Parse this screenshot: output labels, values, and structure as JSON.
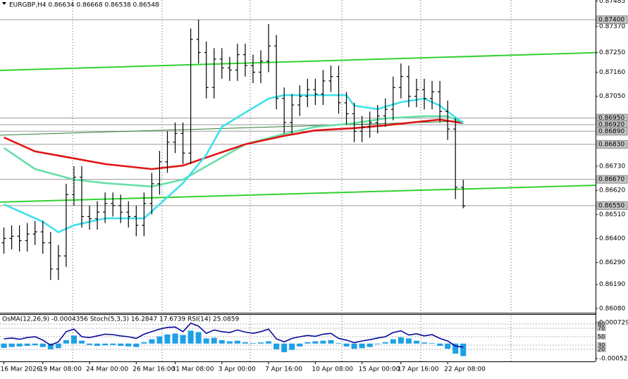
{
  "chart_data": {
    "type": "ohlc",
    "title": "EURGBP,H4  0.86634 0.86668 0.86538 0.86548",
    "categories": [
      "16 Mar 2026",
      null,
      null,
      null,
      null,
      "19 Mar 08:00",
      null,
      null,
      null,
      null,
      null,
      "24 Mar 00:00",
      null,
      null,
      null,
      null,
      null,
      "26 Mar 16:00",
      null,
      null,
      null,
      null,
      "31 Mar 08:00",
      null,
      null,
      null,
      null,
      null,
      "3 Apr 00:00",
      null,
      null,
      null,
      null,
      null,
      "7 Apr 16:00",
      null,
      null,
      null,
      null,
      null,
      "10 Apr 08:00",
      null,
      null,
      null,
      null,
      null,
      "15 Apr 00:00",
      null,
      null,
      null,
      null,
      "17 Apr 16:00",
      null,
      null,
      null,
      null,
      null,
      "22 Apr 08:00",
      null,
      null
    ],
    "open": [
      0.8638,
      0.864,
      0.8641,
      0.8639,
      0.8642,
      0.8643,
      0.8638,
      0.8626,
      0.8632,
      0.866,
      0.8668,
      0.865,
      0.8649,
      0.8652,
      0.8656,
      0.8655,
      0.8652,
      0.865,
      0.8646,
      0.8656,
      0.8665,
      0.8675,
      0.8684,
      0.8688,
      0.8679,
      0.8731,
      0.8725,
      0.8709,
      0.8722,
      0.8718,
      0.8717,
      0.8724,
      0.8719,
      0.8716,
      0.8721,
      0.8728,
      0.8704,
      0.8693,
      0.8701,
      0.8705,
      0.8708,
      0.8706,
      0.8712,
      0.8714,
      0.8702,
      0.8697,
      0.8689,
      0.8691,
      0.8693,
      0.8696,
      0.8699,
      0.8709,
      0.8714,
      0.8705,
      0.8708,
      0.8704,
      0.8707,
      0.8698,
      0.869,
      0.86634
    ],
    "high": [
      0.8645,
      0.8646,
      0.8646,
      0.8647,
      0.8648,
      0.8648,
      0.8643,
      0.8637,
      0.8665,
      0.8673,
      0.8673,
      0.8655,
      0.8657,
      0.8661,
      0.8661,
      0.866,
      0.8657,
      0.8655,
      0.8661,
      0.867,
      0.868,
      0.8689,
      0.8693,
      0.8693,
      0.8736,
      0.874,
      0.873,
      0.8727,
      0.8727,
      0.8723,
      0.8729,
      0.8729,
      0.8724,
      0.8726,
      0.8738,
      0.8733,
      0.8709,
      0.8706,
      0.871,
      0.8713,
      0.8713,
      0.8717,
      0.8719,
      0.8719,
      0.8707,
      0.8702,
      0.8696,
      0.8698,
      0.8701,
      0.8704,
      0.8714,
      0.872,
      0.8719,
      0.8713,
      0.8713,
      0.8712,
      0.8712,
      0.8703,
      0.8695,
      0.86668
    ],
    "low": [
      0.8633,
      0.8635,
      0.8634,
      0.8634,
      0.8637,
      0.8633,
      0.8621,
      0.8621,
      0.8627,
      0.8655,
      0.8645,
      0.8644,
      0.8644,
      0.8647,
      0.865,
      0.8647,
      0.8645,
      0.8641,
      0.8641,
      0.8651,
      0.866,
      0.867,
      0.8679,
      0.8674,
      0.8674,
      0.872,
      0.8704,
      0.8704,
      0.8713,
      0.8712,
      0.8712,
      0.8714,
      0.8711,
      0.8711,
      0.8716,
      0.8699,
      0.8688,
      0.8688,
      0.8696,
      0.87,
      0.8701,
      0.8701,
      0.8707,
      0.8697,
      0.8692,
      0.8684,
      0.8684,
      0.8686,
      0.8688,
      0.8691,
      0.8694,
      0.8704,
      0.87,
      0.87,
      0.8699,
      0.8699,
      0.8693,
      0.8685,
      0.8658,
      0.86538
    ],
    "close": [
      0.864,
      0.8641,
      0.8639,
      0.8642,
      0.8643,
      0.8638,
      0.8626,
      0.8632,
      0.866,
      0.8668,
      0.865,
      0.8649,
      0.8652,
      0.8656,
      0.8655,
      0.8652,
      0.865,
      0.8646,
      0.8656,
      0.8665,
      0.8675,
      0.8684,
      0.8688,
      0.8679,
      0.8731,
      0.8725,
      0.8709,
      0.8722,
      0.8718,
      0.8717,
      0.8724,
      0.8719,
      0.8716,
      0.8721,
      0.8728,
      0.8704,
      0.8693,
      0.8701,
      0.8705,
      0.8708,
      0.8706,
      0.8712,
      0.8714,
      0.8702,
      0.8697,
      0.8689,
      0.8691,
      0.8693,
      0.8696,
      0.8699,
      0.8709,
      0.8714,
      0.8705,
      0.8708,
      0.8704,
      0.8707,
      0.8698,
      0.869,
      0.86634,
      0.86548
    ],
    "color": "#000000",
    "xlim": [
      -0.5,
      76
    ],
    "ylim": [
      0.8606,
      0.8749
    ],
    "yticks": [
      {
        "value": 0.87485,
        "label": "0.87485"
      },
      {
        "value": 0.8737,
        "label": "0.87370"
      },
      {
        "value": 0.8725,
        "label": "0.87250"
      },
      {
        "value": 0.8716,
        "label": "0.87160"
      },
      {
        "value": 0.8705,
        "label": "0.87050"
      },
      {
        "value": 0.8673,
        "label": "0.86730"
      },
      {
        "value": 0.8662,
        "label": "0.86620"
      },
      {
        "value": 0.8651,
        "label": "0.86510"
      },
      {
        "value": 0.864,
        "label": "0.86400"
      },
      {
        "value": 0.8629,
        "label": "0.86290"
      },
      {
        "value": 0.8619,
        "label": "0.86190"
      },
      {
        "value": 0.8608,
        "label": "0.86080"
      }
    ],
    "levels": [
      {
        "value": 0.874,
        "label": "0.87400"
      },
      {
        "value": 0.8695,
        "label": "0.86950"
      },
      {
        "value": 0.8692,
        "label": "0.86920"
      },
      {
        "value": 0.8689,
        "label": "0.86890"
      },
      {
        "value": 0.8683,
        "label": "0.86830"
      },
      {
        "value": 0.8667,
        "label": "0.86670"
      },
      {
        "value": 0.8655,
        "label": "0.86550"
      }
    ],
    "series": [
      {
        "color": "#32d232",
        "x": [
          -0.5,
          76
        ],
        "values": [
          0.87168,
          0.87249
        ]
      },
      {
        "color": "#32d232",
        "x": [
          -0.5,
          76
        ],
        "values": [
          0.86566,
          0.86643
        ]
      },
      {
        "color": "#2e7d32",
        "x": [
          -0.5,
          59
        ],
        "values": [
          0.86872,
          0.86936
        ]
      },
      {
        "color": "#66e0a8",
        "x": [
          0,
          4,
          9,
          13,
          19,
          23,
          27,
          31,
          36,
          40,
          45,
          49,
          54,
          57,
          59
        ],
        "values": [
          0.86814,
          0.86717,
          0.86669,
          0.86653,
          0.86637,
          0.86669,
          0.8675,
          0.8683,
          0.86878,
          0.8691,
          0.86927,
          0.86949,
          0.86959,
          0.86959,
          0.86927
        ]
      },
      {
        "color": "#e01414",
        "x": [
          0,
          4,
          9,
          13,
          19,
          23,
          27,
          31,
          36,
          40,
          45,
          49,
          54,
          56,
          59
        ],
        "values": [
          0.86862,
          0.86798,
          0.86766,
          0.8674,
          0.86717,
          0.86733,
          0.86782,
          0.8683,
          0.86869,
          0.86894,
          0.86904,
          0.86917,
          0.86936,
          0.86943,
          0.86927
        ]
      },
      {
        "color": "#40e0ea",
        "x": [
          0,
          2,
          5,
          7,
          9,
          13,
          18,
          20,
          23,
          26,
          28,
          31,
          34,
          36,
          40,
          44,
          45,
          48,
          51,
          54,
          56,
          59
        ],
        "values": [
          0.86556,
          0.86524,
          0.86476,
          0.86428,
          0.8646,
          0.86492,
          0.86492,
          0.86556,
          0.86653,
          0.86782,
          0.8691,
          0.86975,
          0.87039,
          0.87055,
          0.87055,
          0.87055,
          0.87007,
          0.86991,
          0.87023,
          0.87039,
          0.87007,
          0.86927
        ]
      }
    ],
    "oscillator": {
      "title": "OsMA(12,26,9) -0.0004356  Stoch(5,3,3) 16.2847 17.6739  RSI(14) 25.0859",
      "osma_color": "#1ea0e6",
      "osma": [
        -0.00015,
        -0.00012,
        -0.0001,
        -8e-05,
        -6e-05,
        -0.00012,
        -0.0002,
        -0.00016,
        0.00012,
        0.00028,
        0.0001,
        -5e-05,
        -8e-05,
        -6e-05,
        -5e-05,
        -8e-05,
        -0.0001,
        -0.00012,
        5e-05,
        0.00015,
        0.00025,
        0.00032,
        0.00035,
        0.0003,
        0.00045,
        0.0004,
        0.00018,
        0.0002,
        0.00012,
        8e-05,
        0.0001,
        5e-05,
        2e-05,
        4e-05,
        8e-05,
        -0.0002,
        -0.0003,
        -0.00022,
        -0.0001,
        5e-05,
        8e-05,
        0.0001,
        0.00012,
        2e-05,
        -0.0001,
        -0.00018,
        -0.00016,
        -0.00012,
        -2e-05,
        5e-05,
        0.00015,
        0.00022,
        0.00018,
        0.0001,
        4e-05,
        2e-05,
        -8e-05,
        -0.00018,
        -0.00035,
        -0.0004356
      ],
      "ylim": [
        -0.000596,
        0.000999
      ],
      "yticks": [
        {
          "value": 0.000729,
          "label": "0.0007290"
        },
        {
          "value": -0.000522,
          "label": "-0.000522"
        }
      ],
      "rsi_color": "#0a0a9a",
      "rsi": [
        45,
        47,
        44,
        48,
        50,
        42,
        30,
        38,
        62,
        68,
        50,
        48,
        52,
        56,
        55,
        52,
        50,
        46,
        56,
        62,
        68,
        72,
        73,
        62,
        82,
        75,
        58,
        66,
        62,
        60,
        66,
        61,
        58,
        62,
        68,
        45,
        38,
        46,
        50,
        53,
        51,
        56,
        58,
        46,
        42,
        36,
        40,
        43,
        47,
        50,
        60,
        64,
        54,
        57,
        52,
        55,
        46,
        40,
        28,
        25.0859
      ],
      "y2lim": [
        -6.7,
        101.7
      ],
      "y2ticks": [
        80,
        70,
        50,
        30,
        20
      ]
    }
  }
}
